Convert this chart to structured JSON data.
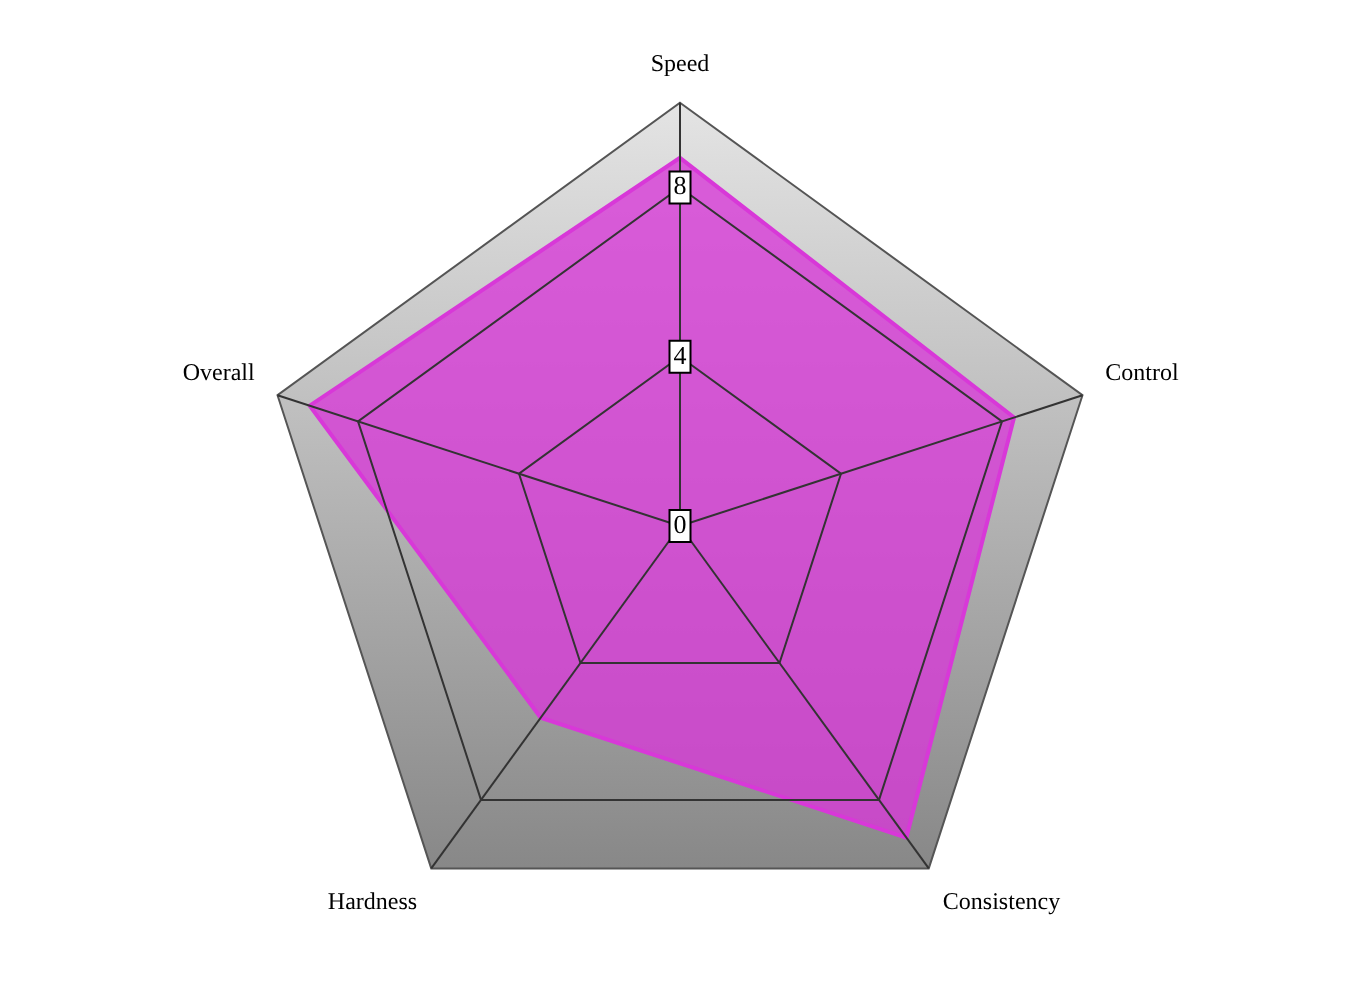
{
  "chart_data": {
    "type": "radar",
    "categories": [
      "Speed",
      "Control",
      "Consistency",
      "Hardness",
      "Overall"
    ],
    "series": [
      {
        "color": "#d838d8",
        "values": [
          8.7,
          8.3,
          9.1,
          5.6,
          9.2
        ]
      }
    ],
    "ylim": [
      0,
      10
    ],
    "yticks": [
      0,
      4,
      8
    ],
    "grid": true,
    "legend": false,
    "marker": "none"
  }
}
